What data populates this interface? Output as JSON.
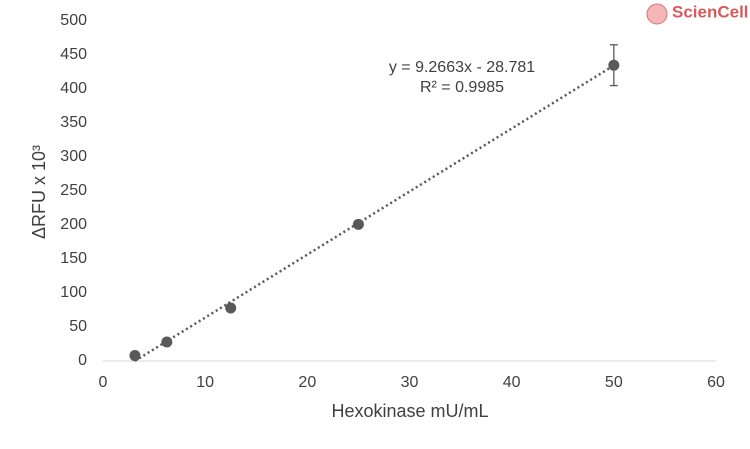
{
  "chart_data": {
    "type": "scatter",
    "x_label": "Hexokinase mU/mL",
    "y_label": "ΔRFU x 10³",
    "logo": "ScienCell",
    "series": [
      {
        "color": "#595959",
        "x": [
          3.125,
          6.25,
          12.5,
          25,
          50
        ],
        "values": [
          8,
          28,
          78,
          201,
          435
        ],
        "errors": [
          2,
          2,
          3,
          4,
          30
        ]
      }
    ],
    "trendline": {
      "slope": 9.2663,
      "intercept": -28.781,
      "equation": "y = 9.2663x - 28.781",
      "r2": "R² = 0.9985",
      "color": "#595959"
    },
    "xlim": [
      0,
      60
    ],
    "xticks": [
      0,
      10,
      20,
      30,
      40,
      50,
      60
    ],
    "ylim": [
      0,
      500
    ],
    "yticks": [
      0,
      50,
      100,
      150,
      200,
      250,
      300,
      350,
      400,
      450,
      500
    ],
    "grid": false
  }
}
